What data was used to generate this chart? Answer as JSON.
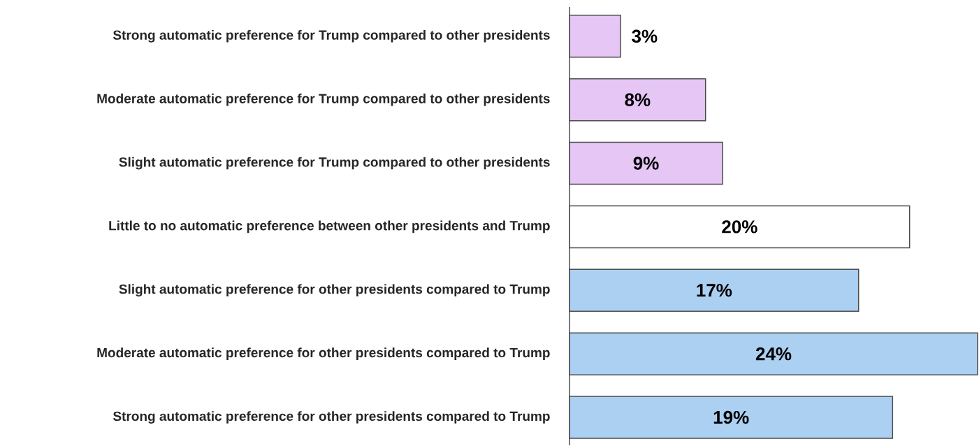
{
  "chart_data": {
    "type": "bar",
    "orientation": "horizontal",
    "categories": [
      "Strong automatic preference for Trump compared to other presidents",
      "Moderate automatic preference for Trump compared to other presidents",
      "Slight automatic preference for Trump compared to other presidents",
      "Little to no automatic preference between other presidents and Trump",
      "Slight automatic preference for other presidents compared to Trump",
      "Moderate automatic preference for other presidents compared to Trump",
      "Strong automatic preference for other presidents compared to Trump"
    ],
    "values": [
      3,
      8,
      9,
      20,
      17,
      24,
      19
    ],
    "colors": [
      "#e6c6f5",
      "#e6c6f5",
      "#e6c6f5",
      "#ffffff",
      "#acd0f2",
      "#acd0f2",
      "#acd0f2"
    ],
    "value_labels": [
      "3%",
      "8%",
      "9%",
      "20%",
      "17%",
      "24%",
      "19%"
    ]
  }
}
